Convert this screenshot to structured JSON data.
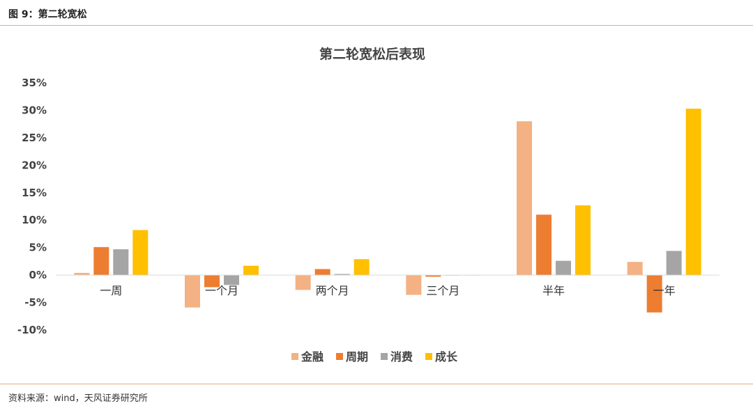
{
  "figure": {
    "label": "图 9：第二轮宽松",
    "source": "资料来源：wind，天风证券研究所"
  },
  "chart_data": {
    "type": "bar",
    "title": "第二轮宽松后表现",
    "categories": [
      "一周",
      "一个月",
      "两个月",
      "三个月",
      "半年",
      "一年"
    ],
    "series": [
      {
        "name": "金融",
        "color": "#f4b183",
        "values": [
          0.4,
          -5.9,
          -2.7,
          -3.6,
          28.0,
          2.4
        ]
      },
      {
        "name": "周期",
        "color": "#ed7d31",
        "values": [
          5.1,
          -2.2,
          1.1,
          -0.3,
          11.0,
          -6.8
        ]
      },
      {
        "name": "消费",
        "color": "#a5a5a5",
        "values": [
          4.7,
          -1.8,
          0.2,
          0.0,
          2.6,
          4.4
        ]
      },
      {
        "name": "成长",
        "color": "#ffc000",
        "values": [
          8.2,
          1.7,
          2.9,
          0.0,
          12.7,
          30.3
        ]
      }
    ],
    "ylim": [
      -10,
      35
    ],
    "yticks": [
      -10,
      -5,
      0,
      5,
      10,
      15,
      20,
      25,
      30,
      35
    ],
    "ytick_labels": [
      "-10%",
      "-5%",
      "0%",
      "5%",
      "10%",
      "15%",
      "20%",
      "25%",
      "30%",
      "35%"
    ],
    "grid": false,
    "legend_position": "bottom"
  }
}
